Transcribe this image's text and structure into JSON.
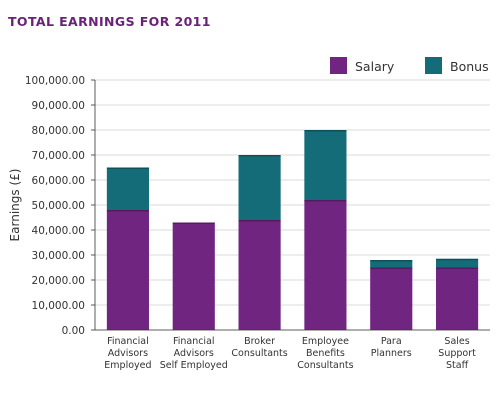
{
  "chart_data": {
    "type": "bar",
    "stacked": true,
    "title": "TOTAL EARNINGS FOR 2011",
    "ylabel": "Earnings (£)",
    "xlabel": "",
    "ylim": [
      0,
      100000
    ],
    "y_ticks": [
      "0.00",
      "10,000.00",
      "20,000.00",
      "30,000.00",
      "40,000.00",
      "50,000.00",
      "60,000.00",
      "70,000.00",
      "80,000.00",
      "90,000.00",
      "100,000.00"
    ],
    "grid": true,
    "legend_position": "top-right",
    "categories": [
      [
        "Financial",
        "Advisors",
        "Employed"
      ],
      [
        "Financial",
        "Advisors",
        "Self Employed"
      ],
      [
        "Broker",
        "Consultants"
      ],
      [
        "Employee",
        "Benefits",
        "Consultants"
      ],
      [
        "Para",
        "Planners"
      ],
      [
        "Sales",
        "Support",
        "Staff"
      ]
    ],
    "series": [
      {
        "name": "Salary",
        "color": "#702581",
        "values": [
          48000,
          43000,
          44000,
          52000,
          25000,
          25000
        ]
      },
      {
        "name": "Bonus",
        "color": "#136c77",
        "values": [
          17000,
          0,
          26000,
          28000,
          3000,
          3500
        ]
      }
    ]
  }
}
